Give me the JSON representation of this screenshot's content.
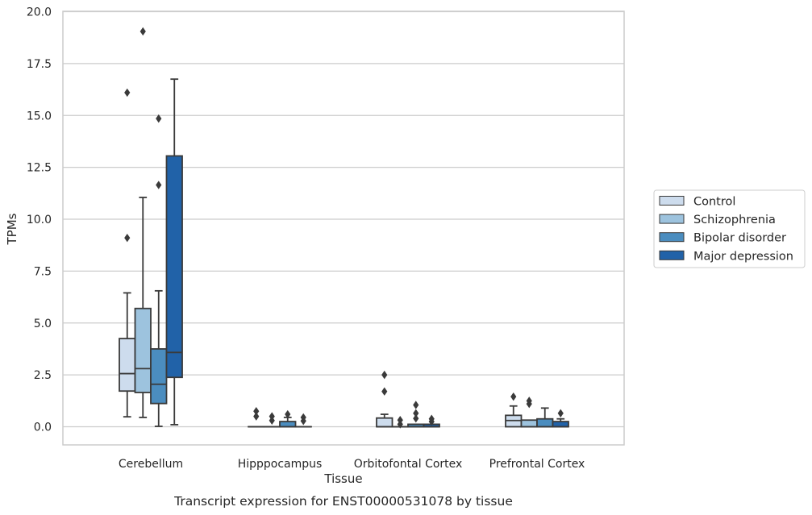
{
  "chart_data": {
    "type": "box",
    "xlabel": "Tissue",
    "ylabel": "TPMs",
    "caption": "Transcript expression for ENST00000531078 by tissue",
    "ylim": [
      -0.9,
      20.0
    ],
    "yticks": [
      "0.0",
      "2.5",
      "5.0",
      "7.5",
      "10.0",
      "12.5",
      "15.0",
      "17.5",
      "20.0"
    ],
    "ytick_values": [
      0,
      2.5,
      5,
      7.5,
      10,
      12.5,
      15,
      17.5,
      20
    ],
    "grid": "horizontal",
    "legend_position": "right",
    "categories": [
      "Cerebellum",
      "Hipppocampus",
      "Orbitofontal Cortex",
      "Prefrontal Cortex"
    ],
    "series": [
      {
        "name": "Control",
        "color": "#cddced",
        "boxes": [
          {
            "whislo": 0.48,
            "q1": 1.72,
            "med": 2.56,
            "q3": 4.25,
            "whishi": 6.45,
            "fliers": [
              9.1,
              16.1
            ]
          },
          {
            "whislo": 0.0,
            "q1": 0.0,
            "med": 0.0,
            "q3": 0.0,
            "whishi": 0.0,
            "fliers": [
              0.5,
              0.75
            ]
          },
          {
            "whislo": 0.0,
            "q1": 0.0,
            "med": 0.0,
            "q3": 0.42,
            "whishi": 0.6,
            "fliers": [
              1.7,
              2.5
            ]
          },
          {
            "whislo": 0.0,
            "q1": 0.0,
            "med": 0.3,
            "q3": 0.55,
            "whishi": 1.0,
            "fliers": [
              1.45
            ]
          }
        ]
      },
      {
        "name": "Schizophrenia",
        "color": "#9dc3de",
        "boxes": [
          {
            "whislo": 0.45,
            "q1": 1.65,
            "med": 2.8,
            "q3": 5.7,
            "whishi": 11.05,
            "fliers": [
              19.05
            ]
          },
          {
            "whislo": 0.0,
            "q1": 0.0,
            "med": 0.0,
            "q3": 0.0,
            "whishi": 0.0,
            "fliers": [
              0.3,
              0.5
            ]
          },
          {
            "whislo": 0.0,
            "q1": 0.0,
            "med": 0.0,
            "q3": 0.0,
            "whishi": 0.0,
            "fliers": [
              0.12,
              0.32
            ]
          },
          {
            "whislo": 0.0,
            "q1": 0.0,
            "med": 0.0,
            "q3": 0.32,
            "whishi": 0.32,
            "fliers": [
              1.1,
              1.25
            ]
          }
        ]
      },
      {
        "name": "Bipolar disorder",
        "color": "#4b8dbf",
        "boxes": [
          {
            "whislo": 0.02,
            "q1": 1.12,
            "med": 2.05,
            "q3": 3.75,
            "whishi": 6.55,
            "fliers": [
              11.65,
              14.85
            ]
          },
          {
            "whislo": 0.0,
            "q1": 0.0,
            "med": 0.0,
            "q3": 0.25,
            "whishi": 0.45,
            "fliers": [
              0.6
            ]
          },
          {
            "whislo": 0.0,
            "q1": 0.0,
            "med": 0.0,
            "q3": 0.12,
            "whishi": 0.12,
            "fliers": [
              0.4,
              0.65,
              1.05
            ]
          },
          {
            "whislo": 0.0,
            "q1": 0.0,
            "med": 0.0,
            "q3": 0.38,
            "whishi": 0.9,
            "fliers": []
          }
        ]
      },
      {
        "name": "Major depression",
        "color": "#2162a8",
        "boxes": [
          {
            "whislo": 0.1,
            "q1": 2.38,
            "med": 3.58,
            "q3": 13.05,
            "whishi": 16.75,
            "fliers": []
          },
          {
            "whislo": 0.0,
            "q1": 0.0,
            "med": 0.0,
            "q3": 0.0,
            "whishi": 0.0,
            "fliers": [
              0.28,
              0.45
            ]
          },
          {
            "whislo": 0.0,
            "q1": 0.0,
            "med": 0.0,
            "q3": 0.12,
            "whishi": 0.12,
            "fliers": [
              0.25,
              0.38
            ]
          },
          {
            "whislo": 0.0,
            "q1": 0.0,
            "med": 0.0,
            "q3": 0.25,
            "whishi": 0.38,
            "fliers": [
              0.65
            ]
          }
        ]
      }
    ]
  }
}
